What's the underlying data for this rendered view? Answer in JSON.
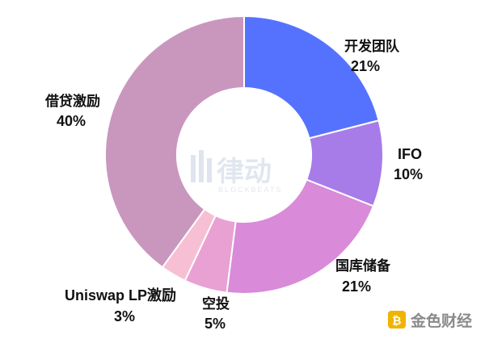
{
  "chart_data": {
    "type": "pie",
    "donut": true,
    "title": "",
    "slices": [
      {
        "label": "开发团队",
        "percent_label": "21%",
        "value": 21,
        "color": "#5572ff"
      },
      {
        "label": "IFO",
        "percent_label": "10%",
        "value": 10,
        "color": "#a77ce8"
      },
      {
        "label": "国库储备",
        "percent_label": "21%",
        "value": 21,
        "color": "#d98ad8"
      },
      {
        "label": "空投",
        "percent_label": "5%",
        "value": 5,
        "color": "#e8a1d2"
      },
      {
        "label": "Uniswap LP激励",
        "percent_label": "3%",
        "value": 3,
        "color": "#f7bfd3"
      },
      {
        "label": "借贷激励",
        "percent_label": "40%",
        "value": 40,
        "color": "#c997be"
      }
    ],
    "legend": "none"
  },
  "watermark": {
    "text": "律动",
    "sub": "BLOCKBEATS"
  },
  "corner_logo": {
    "text": "金色财经"
  }
}
